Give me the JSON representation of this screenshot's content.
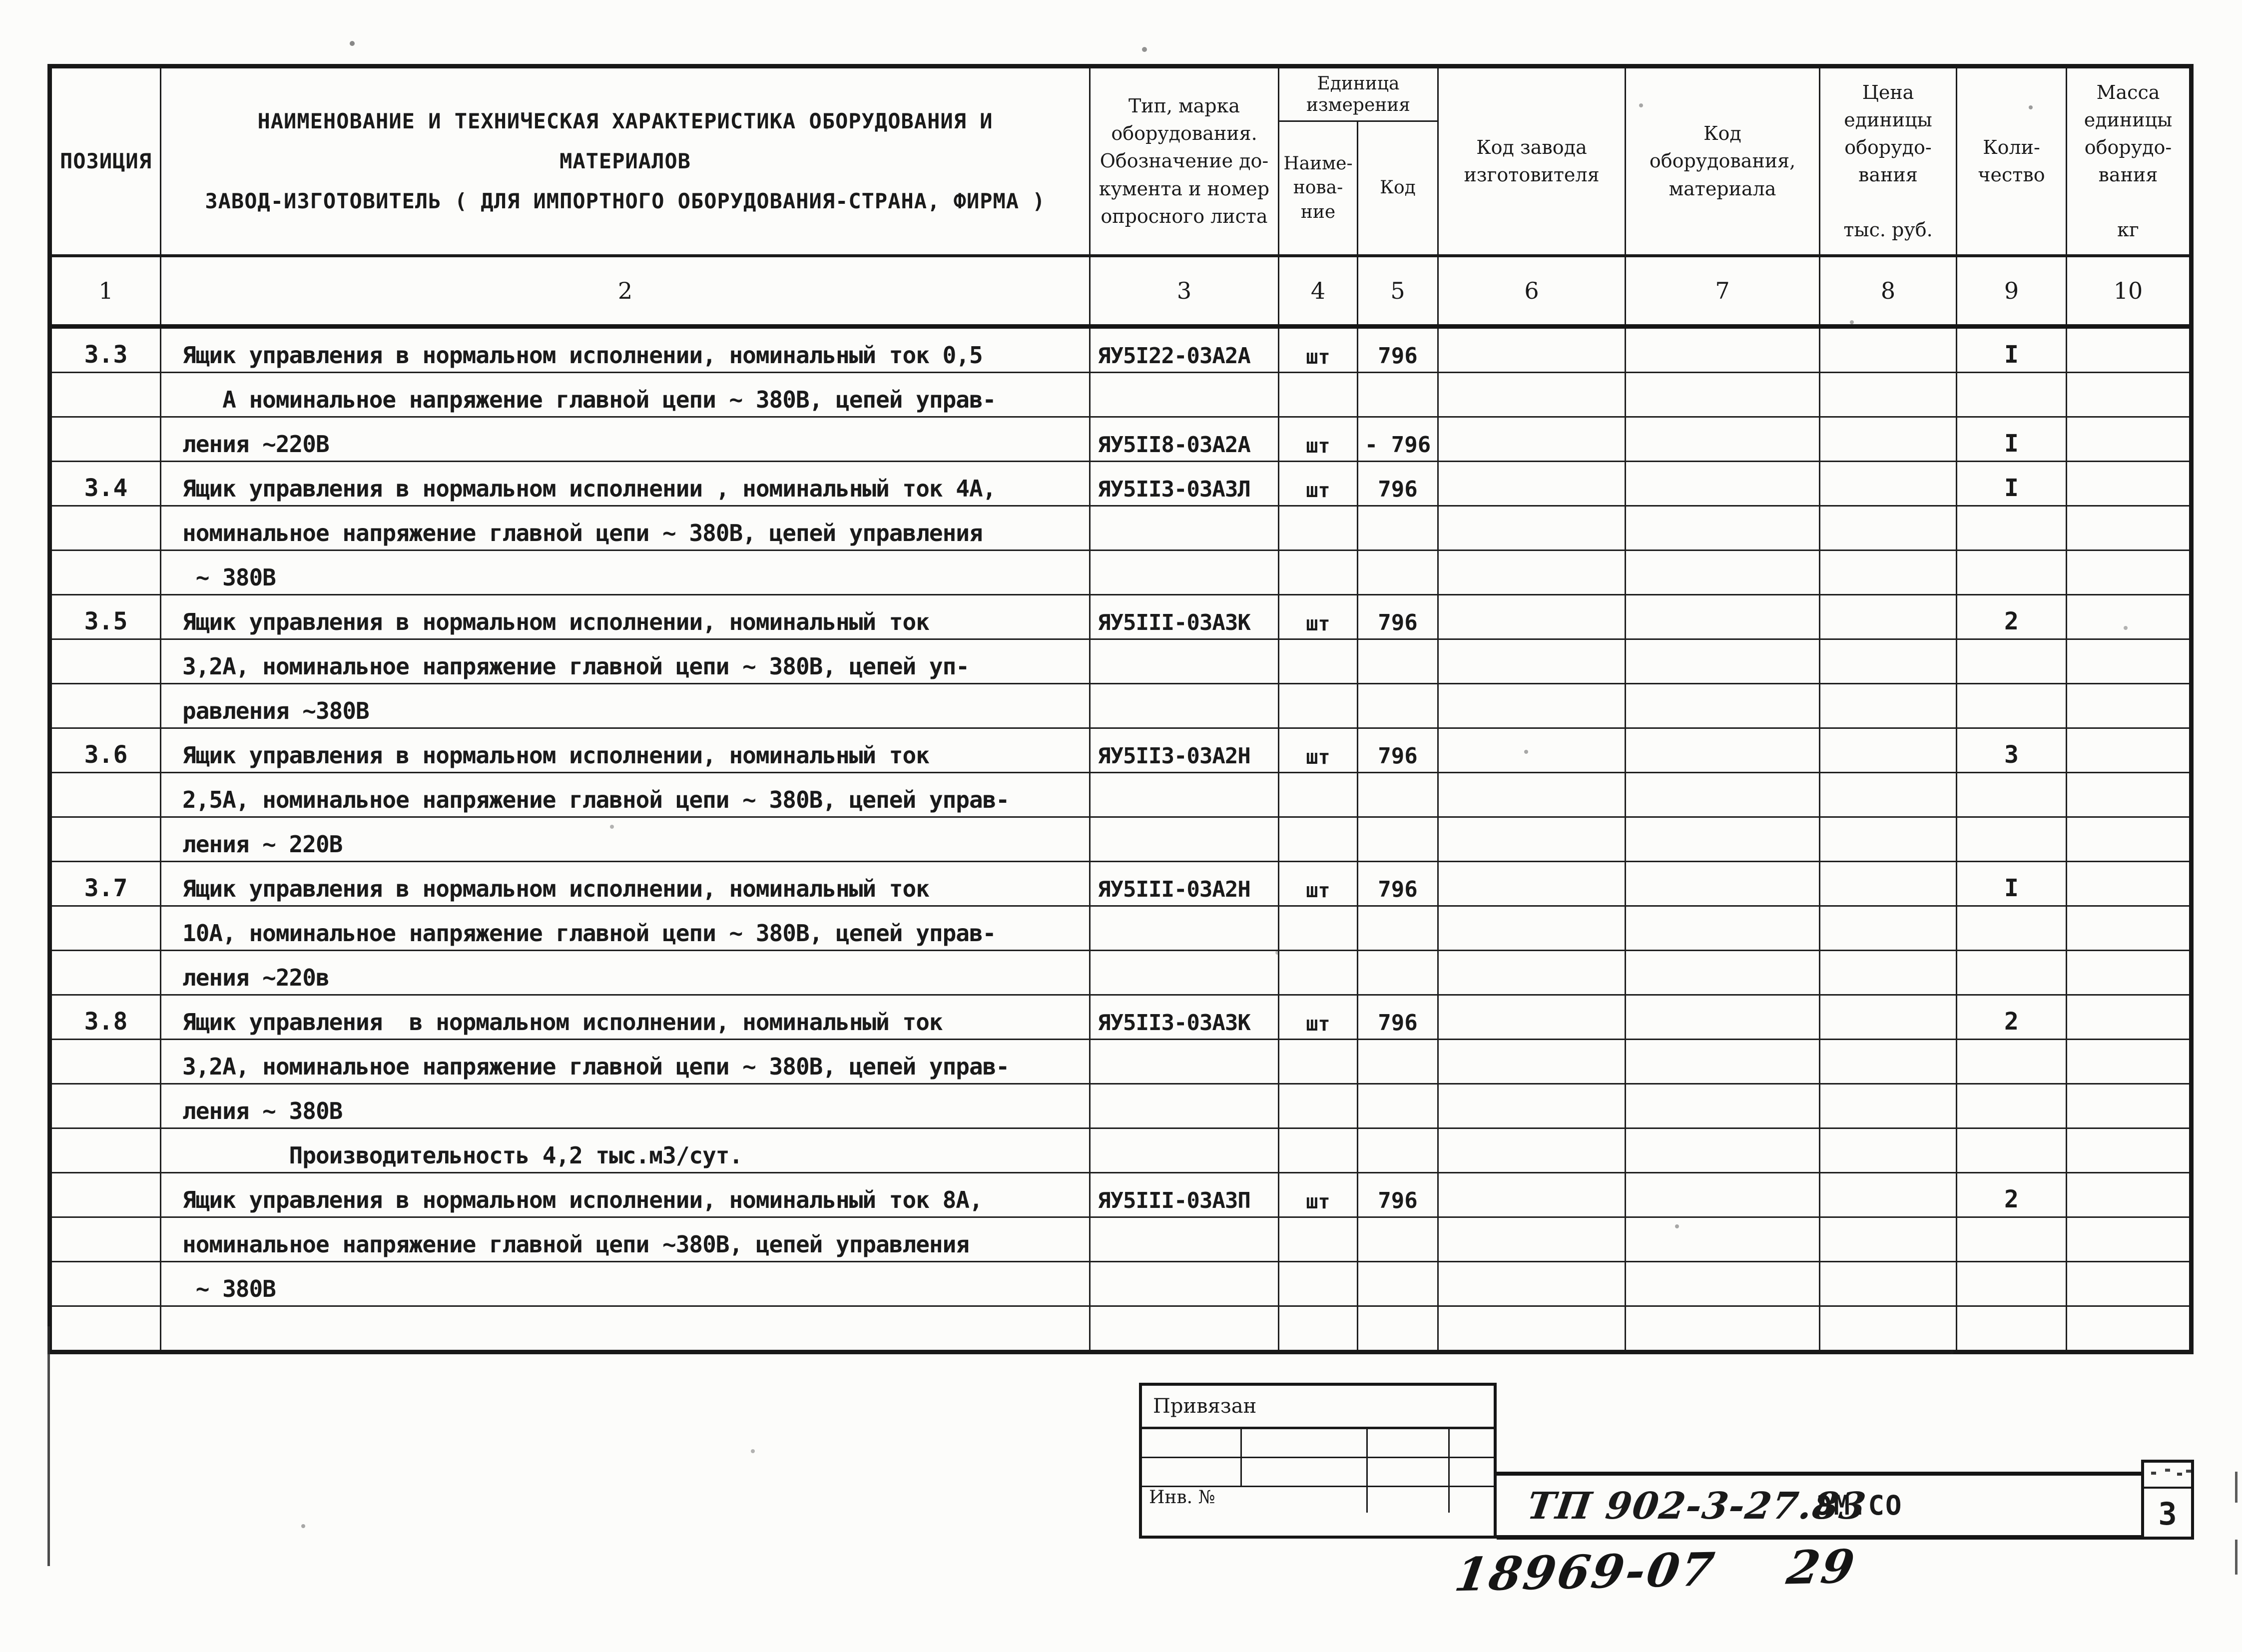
{
  "table": {
    "headers": {
      "position": "ПОЗИЦИЯ",
      "name": "НАИМЕНОВАНИЕ  И  ТЕХНИЧЕСКАЯ  ХАРАКТЕРИСТИКА  ОБОРУДОВАНИЯ  И\nМАТЕРИАЛОВ\nЗАВОД-ИЗГОТОВИТЕЛЬ ( ДЛЯ  ИМПОРТНОГО  ОБОРУДОВАНИЯ-СТРАНА, ФИРМА )",
      "type": "Тип, марка\nоборудования.\nОбозначение до-\nкумента и номер\nопросного листа",
      "unit_group": "Единица\nизмерения",
      "unit_name": "Наиме-\nнова-\nние",
      "unit_code": "Код",
      "factory_code": "Код завода\nизготовителя",
      "equipment_code": "Код\nоборудования,\nматериала",
      "price": "Цена\nединицы\nоборудо-\nвания\n\nтыс. руб.",
      "quantity": "Коли-\nчество",
      "mass": "Масса\nединицы\nоборудо-\nвания\n\nкг"
    },
    "column_numbers": [
      "1",
      "2",
      "3",
      "4",
      "5",
      "6",
      "7",
      "8",
      "9",
      "10"
    ],
    "rows": [
      {
        "pos": "3.3",
        "name": "Ящик управления в нормальном исполнении, номинальный ток 0,5",
        "type": "ЯУ5I22-03А2А",
        "unit": "шт",
        "code": "796",
        "qty": "I"
      },
      {
        "pos": "",
        "name": "   А номинальное напряжение главной цепи ~ 380В, цепей управ-",
        "type": "",
        "unit": "",
        "code": "",
        "qty": ""
      },
      {
        "pos": "",
        "name": "ления ~220В",
        "type": "ЯУ5II8-03А2А",
        "unit": "шт",
        "code": "- 796",
        "qty": "I"
      },
      {
        "pos": "3.4",
        "name": "Ящик управления в нормальном исполнении , номинальный ток 4А,",
        "type": "ЯУ5II3-03А3Л",
        "unit": "шт",
        "code": "796",
        "qty": "I"
      },
      {
        "pos": "",
        "name": "номинальное напряжение главной цепи ~ 380В, цепей управления",
        "type": "",
        "unit": "",
        "code": "",
        "qty": ""
      },
      {
        "pos": "",
        "name": " ~ 380В",
        "type": "",
        "unit": "",
        "code": "",
        "qty": ""
      },
      {
        "pos": "3.5",
        "name": "Ящик управления в нормальном исполнении, номинальный ток",
        "type": "ЯУ5III-03А3К",
        "unit": "шт",
        "code": "796",
        "qty": "2"
      },
      {
        "pos": "",
        "name": "3,2А, номинальное напряжение главной цепи ~ 380В, цепей уп-",
        "type": "",
        "unit": "",
        "code": "",
        "qty": ""
      },
      {
        "pos": "",
        "name": "равления ~380В",
        "type": "",
        "unit": "",
        "code": "",
        "qty": ""
      },
      {
        "pos": "3.6",
        "name": "Ящик управления в нормальном исполнении, номинальный ток",
        "type": "ЯУ5II3-03А2Н",
        "unit": "шт",
        "code": "796",
        "qty": "3"
      },
      {
        "pos": "",
        "name": "2,5А, номинальное напряжение главной цепи ~ 380В, цепей управ-",
        "type": "",
        "unit": "",
        "code": "",
        "qty": ""
      },
      {
        "pos": "",
        "name": "ления ~ 220В",
        "type": "",
        "unit": "",
        "code": "",
        "qty": ""
      },
      {
        "pos": "3.7",
        "name": "Ящик управления в нормальном исполнении, номинальный ток",
        "type": "ЯУ5III-03А2Н",
        "unit": "шт",
        "code": "796",
        "qty": "I"
      },
      {
        "pos": "",
        "name": "10А, номинальное напряжение главной цепи ~ 380В, цепей управ-",
        "type": "",
        "unit": "",
        "code": "",
        "qty": ""
      },
      {
        "pos": "",
        "name": "ления ~220в",
        "type": "",
        "unit": "",
        "code": "",
        "qty": ""
      },
      {
        "pos": "3.8",
        "name": "Ящик управления  в нормальном исполнении, номинальный ток",
        "type": "ЯУ5II3-03А3К",
        "unit": "шт",
        "code": "796",
        "qty": "2"
      },
      {
        "pos": "",
        "name": "3,2А, номинальное напряжение главной цепи ~ 380В, цепей управ-",
        "type": "",
        "unit": "",
        "code": "",
        "qty": ""
      },
      {
        "pos": "",
        "name": "ления ~ 380В",
        "type": "",
        "unit": "",
        "code": "",
        "qty": ""
      },
      {
        "pos": "",
        "name": "        Производительность 4,2 тыс.м3/сут.",
        "type": "",
        "unit": "",
        "code": "",
        "qty": ""
      },
      {
        "pos": "",
        "name": "Ящик управления в нормальном исполнении, номинальный ток 8А,",
        "type": "ЯУ5III-03А3П",
        "unit": "шт",
        "code": "796",
        "qty": "2"
      },
      {
        "pos": "",
        "name": "номинальное напряжение главной цепи ~380В, цепей управления",
        "type": "",
        "unit": "",
        "code": "",
        "qty": ""
      },
      {
        "pos": "",
        "name": " ~ 380В",
        "type": "",
        "unit": "",
        "code": "",
        "qty": ""
      },
      {
        "pos": "",
        "name": "",
        "type": "",
        "unit": "",
        "code": "",
        "qty": ""
      }
    ]
  },
  "stamp": {
    "label": "Привязан",
    "inventory": "Инв. №"
  },
  "titleblock": {
    "document_number": "ТП 902-3-27.83",
    "department": "ЭМ.СО",
    "sheet_number": "3"
  },
  "annotations": {
    "handwritten": "18969-07    29"
  }
}
